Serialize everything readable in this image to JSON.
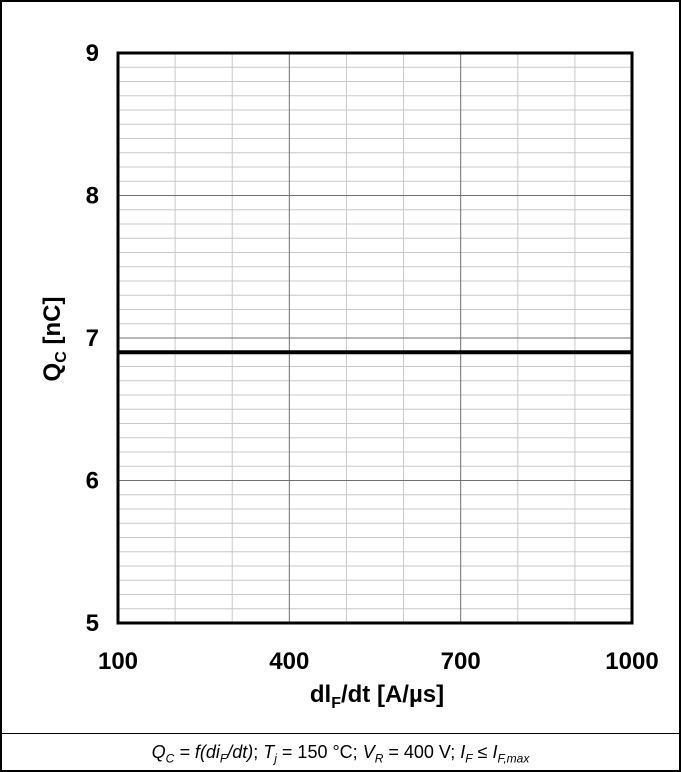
{
  "chart_data": {
    "type": "line",
    "title": "",
    "xlabel": "dlF/dt [A/µs]",
    "xlabel_main": "dl",
    "xlabel_sub": "F",
    "xlabel_rest": "/dt [A/µs]",
    "ylabel": "QC [nC]",
    "ylabel_main": "Q",
    "ylabel_sub": "C",
    "ylabel_rest": " [nC]",
    "xlim": [
      100,
      1000
    ],
    "ylim": [
      5,
      9
    ],
    "x_ticks": [
      100,
      400,
      700,
      1000
    ],
    "y_ticks": [
      5,
      6,
      7,
      8,
      9
    ],
    "x_minor_step": 100,
    "y_minor_step": 0.1,
    "grid": true,
    "series": [
      {
        "x": [
          100,
          1000
        ],
        "y": [
          6.9,
          6.9
        ]
      }
    ]
  },
  "caption": {
    "q": "Q",
    "q_sub": "C",
    "eq1": " = f(di",
    "di_sub": "F",
    "eq1_end": "/dt)",
    "sep1": "; ",
    "t": "T",
    "t_sub": "j",
    "t_val": " = 150 °C",
    "sep2": "; ",
    "v": "V",
    "v_sub": "R",
    "v_val": " = 400 V",
    "sep3": "; ",
    "i": "I",
    "i_sub": "F",
    "i_rel": " ≤ ",
    "imax": "I",
    "imax_sub": "F,max"
  }
}
